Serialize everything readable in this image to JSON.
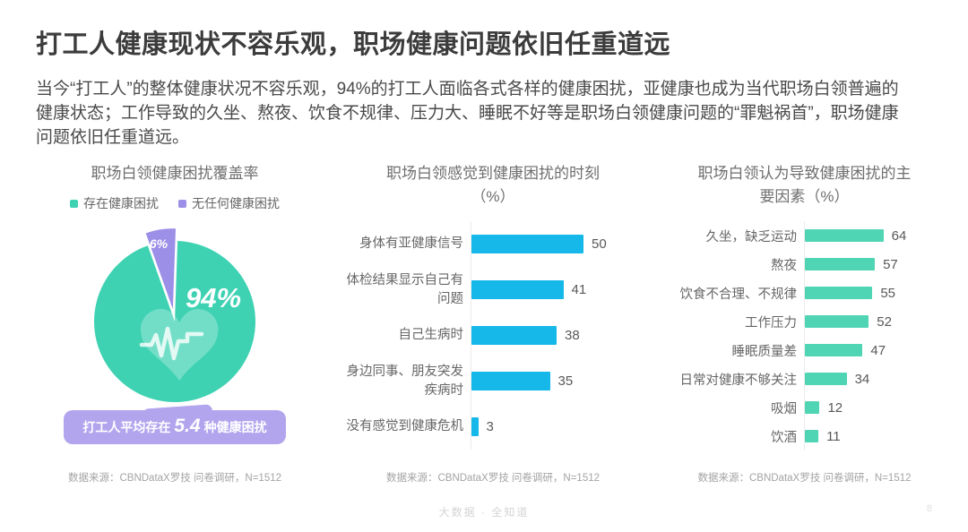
{
  "header": {
    "title": "打工人健康现状不容乐观，职场健康问题依旧任重道远",
    "paragraph": "当今“打工人”的整体健康状况不容乐观，94%的打工人面临各式各样的健康困扰，亚健康也成为当代职场白领普遍的健康状态；工作导致的久坐、熬夜、饮食不规律、压力大、睡眠不好等是职场白领健康问题的“罪魁祸首”，职场健康问题依旧任重道远。"
  },
  "colors": {
    "pie_green": "#3ed2b3",
    "pie_purple": "#9c8fe8",
    "bar_blue": "#16b8e9",
    "bar_green": "#50d5b4",
    "banner_purple": "#b2a5ee"
  },
  "chart_data": [
    {
      "type": "pie",
      "title": "职场白领健康困扰覆盖率",
      "title_lines": [
        "职场白领健康困扰覆盖率"
      ],
      "legend": [
        {
          "label": "存在健康困扰",
          "color": "#3ed2b3"
        },
        {
          "label": "无任何健康困扰",
          "color": "#9c8fe8"
        }
      ],
      "slices": [
        {
          "label": "存在健康困扰",
          "value": 94,
          "display": "94%",
          "color": "#3ed2b3"
        },
        {
          "label": "无任何健康困扰",
          "value": 6,
          "display": "6%",
          "color": "#9c8fe8"
        }
      ],
      "icon": "heart-ekg-icon",
      "annotation": {
        "prefix": "打工人平均存在",
        "highlight": "5.4",
        "suffix": "种健康困扰"
      },
      "source": "数据来源：CBNDataX罗技 问卷调研，N=1512"
    },
    {
      "type": "bar",
      "title": "职场白领感觉到健康困扰的时刻（%）",
      "title_lines": [
        "职场白领感觉到健康困扰的时刻",
        "（%）"
      ],
      "categories": [
        "身体有亚健康信号",
        "体检结果显示自己有问题",
        "自己生病时",
        "身边同事、朋友突发疾病时",
        "没有感觉到健康危机"
      ],
      "values": [
        50,
        41,
        38,
        35,
        3
      ],
      "xlim": [
        0,
        55
      ],
      "color": "#16b8e9",
      "legend_position": "none",
      "grid": false,
      "source": "数据来源：CBNDataX罗技 问卷调研，N=1512"
    },
    {
      "type": "bar",
      "title": "职场白领认为导致健康困扰的主要因素（%）",
      "title_lines": [
        "职场白领认为导致健康困扰的主",
        "要因素（%）"
      ],
      "categories": [
        "久坐，缺乏运动",
        "熬夜",
        "饮食不合理、不规律",
        "工作压力",
        "睡眠质量差",
        "日常对健康不够关注",
        "吸烟",
        "饮酒"
      ],
      "values": [
        64,
        57,
        55,
        52,
        47,
        34,
        12,
        11
      ],
      "xlim": [
        0,
        70
      ],
      "color": "#50d5b4",
      "legend_position": "none",
      "grid": false,
      "source": "数据来源：CBNDataX罗技 问卷调研，N=1512"
    }
  ],
  "footer": {
    "watermark": "大数据 · 全知道",
    "page_number": "8"
  }
}
